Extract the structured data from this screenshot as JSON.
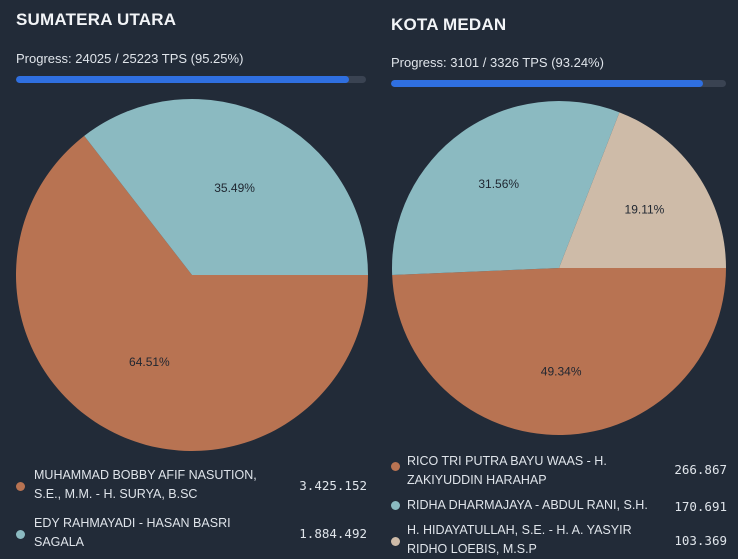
{
  "colors": {
    "background": "#222b38",
    "slice_orange": "#b87352",
    "slice_teal": "#8bbac1",
    "slice_beige": "#cebba8",
    "progress_fill": "#2f6fe0",
    "progress_track": "#3a4352"
  },
  "left": {
    "title": "SUMATERA UTARA",
    "progress": {
      "text": "Progress: 24025 / 25223 TPS (95.25%)",
      "fraction": 0.9525
    },
    "legend": [
      {
        "name": "MUHAMMAD BOBBY AFIF NASUTION, S.E., M.M. - H. SURYA, B.Sc",
        "value": "3.425.152",
        "color": "#b87352"
      },
      {
        "name": "EDY RAHMAYADI - HASAN BASRI SAGALA",
        "value": "1.884.492",
        "color": "#8bbac1"
      }
    ]
  },
  "right": {
    "title": "KOTA MEDAN",
    "progress": {
      "text": "Progress: 3101 / 3326 TPS (93.24%)",
      "fraction": 0.9324
    },
    "legend": [
      {
        "name": "RICO TRI PUTRA BAYU WAAS - H. ZAKIYUDDIN HARAHAP",
        "value": "266.867",
        "color": "#b87352"
      },
      {
        "name": "RIDHA DHARMAJAYA - ABDUL RANI, S.H.",
        "value": "170.691",
        "color": "#8bbac1"
      },
      {
        "name": "H. HIDAYATULLAH, S.E. - H. A. YASYIR RIDHO LOEBIS, M.S.P",
        "value": "103.369",
        "color": "#cebba8"
      }
    ]
  },
  "chart_data": [
    {
      "type": "pie",
      "title": "SUMATERA UTARA",
      "labels": [
        "MUHAMMAD BOBBY AFIF NASUTION, S.E., M.M. - H. SURYA, B.Sc",
        "EDY RAHMAYADI - HASAN BASRI SAGALA"
      ],
      "values": [
        64.51,
        35.49
      ],
      "data_labels": [
        "64.51%",
        "35.49%"
      ],
      "colors": [
        "#b87352",
        "#8bbac1"
      ]
    },
    {
      "type": "pie",
      "title": "KOTA MEDAN",
      "labels": [
        "RICO TRI PUTRA BAYU WAAS - H. ZAKIYUDDIN HARAHAP",
        "RIDHA DHARMAJAYA - ABDUL RANI, S.H.",
        "H. HIDAYATULLAH, S.E. - H. A. YASYIR RIDHO LOEBIS, M.S.P"
      ],
      "values": [
        49.34,
        31.56,
        19.11
      ],
      "data_labels": [
        "49.34%",
        "31.56%",
        "19.11%"
      ],
      "colors": [
        "#b87352",
        "#8bbac1",
        "#cebba8"
      ]
    }
  ]
}
